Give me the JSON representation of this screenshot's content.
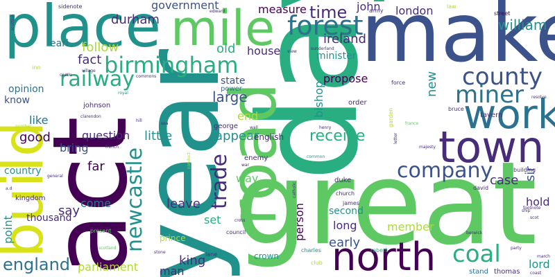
{
  "colors": {
    "background": "#ffffff",
    "palette": [
      "#440154",
      "#472c7a",
      "#3b528b",
      "#2c728e",
      "#21918c",
      "#28ae80",
      "#5ec962",
      "#addc30",
      "#d8e219"
    ]
  },
  "words": [
    {
      "text": "day",
      "color": "#28ae80"
    },
    {
      "text": "year",
      "color": "#21918c"
    },
    {
      "text": "great",
      "color": "#5ec962"
    },
    {
      "text": "make",
      "color": "#3b528b"
    },
    {
      "text": "act",
      "color": "#440154"
    },
    {
      "text": "build",
      "color": "#d8e219"
    },
    {
      "text": "road",
      "color": "#5ec962"
    },
    {
      "text": "place",
      "color": "#21918c"
    },
    {
      "text": "mile",
      "color": "#5ec962"
    },
    {
      "text": "town",
      "color": "#472c7a"
    },
    {
      "text": "north",
      "color": "#440154"
    },
    {
      "text": "work",
      "color": "#2c728e"
    },
    {
      "text": "forest",
      "color": "#2c728e"
    },
    {
      "text": "birmingham",
      "color": "#28ae80"
    },
    {
      "text": "county",
      "color": "#3b528b"
    },
    {
      "text": "miner",
      "color": "#2c728e"
    },
    {
      "text": "company",
      "color": "#3b528b"
    },
    {
      "text": "coal",
      "color": "#28ae80"
    },
    {
      "text": "railway",
      "color": "#28ae80"
    },
    {
      "text": "newcastle",
      "color": "#21918c"
    },
    {
      "text": "trade",
      "color": "#472c7a"
    },
    {
      "text": "england",
      "color": "#2c728e"
    },
    {
      "text": "receive",
      "color": "#28ae80"
    },
    {
      "text": "time",
      "color": "#472c7a"
    },
    {
      "text": "william",
      "color": "#21918c"
    },
    {
      "text": "government",
      "color": "#3b528b"
    },
    {
      "text": "durham",
      "color": "#472c7a"
    },
    {
      "text": "measure",
      "color": "#440154"
    },
    {
      "text": "london",
      "color": "#472c7a"
    },
    {
      "text": "john",
      "color": "#472c7a"
    },
    {
      "text": "ireland",
      "color": "#472c7a"
    },
    {
      "text": "old",
      "color": "#28ae80"
    },
    {
      "text": "house",
      "color": "#472c7a"
    },
    {
      "text": "minister",
      "color": "#21918c"
    },
    {
      "text": "follow",
      "color": "#addc30"
    },
    {
      "text": "fact",
      "color": "#472c7a"
    },
    {
      "text": "earl",
      "color": "#2c728e"
    },
    {
      "text": "bishop",
      "color": "#21918c"
    },
    {
      "text": "propose",
      "color": "#440154"
    },
    {
      "text": "state",
      "color": "#3b528b"
    },
    {
      "text": "large",
      "color": "#3b528b"
    },
    {
      "text": "power",
      "color": "#2c728e"
    },
    {
      "text": "end",
      "color": "#addc30"
    },
    {
      "text": "appear",
      "color": "#21918c"
    },
    {
      "text": "little",
      "color": "#21918c"
    },
    {
      "text": "question",
      "color": "#472c7a"
    },
    {
      "text": "good",
      "color": "#440154"
    },
    {
      "text": "bring",
      "color": "#3b528b"
    },
    {
      "text": "like",
      "color": "#2c728e"
    },
    {
      "text": "far",
      "color": "#440154"
    },
    {
      "text": "know",
      "color": "#3b528b"
    },
    {
      "text": "opinion",
      "color": "#2c728e"
    },
    {
      "text": "country",
      "color": "#21918c"
    },
    {
      "text": "way",
      "color": "#5ec962"
    },
    {
      "text": "case",
      "color": "#472c7a"
    },
    {
      "text": "sir",
      "color": "#3b528b"
    },
    {
      "text": "hold",
      "color": "#472c7a"
    },
    {
      "text": "lord",
      "color": "#21918c"
    },
    {
      "text": "new",
      "color": "#21918c"
    },
    {
      "text": "say",
      "color": "#472c7a"
    },
    {
      "text": "come",
      "color": "#2c728e"
    },
    {
      "text": "leave",
      "color": "#472c7a"
    },
    {
      "text": "set",
      "color": "#28ae80"
    },
    {
      "text": "second",
      "color": "#21918c"
    },
    {
      "text": "long",
      "color": "#472c7a"
    },
    {
      "text": "early",
      "color": "#3b528b"
    },
    {
      "text": "member",
      "color": "#addc30"
    },
    {
      "text": "point",
      "color": "#21918c"
    },
    {
      "text": "thousand",
      "color": "#472c7a"
    },
    {
      "text": "parliament",
      "color": "#addc30"
    },
    {
      "text": "man",
      "color": "#472c7a"
    },
    {
      "text": "king",
      "color": "#472c7a"
    },
    {
      "text": "person",
      "color": "#440154"
    },
    {
      "text": "english",
      "color": "#472c7a"
    },
    {
      "text": "enemy",
      "color": "#472c7a"
    },
    {
      "text": "crown",
      "color": "#21918c"
    },
    {
      "text": "prince",
      "color": "#addc30"
    },
    {
      "text": "kingdom",
      "color": "#472c7a"
    },
    {
      "text": "johnson",
      "color": "#472c7a"
    },
    {
      "text": "george",
      "color": "#472c7a"
    },
    {
      "text": "order",
      "color": "#472c7a"
    },
    {
      "text": "duke",
      "color": "#472c7a"
    },
    {
      "text": "army",
      "color": "#472c7a"
    },
    {
      "text": "street",
      "color": "#440154"
    },
    {
      "text": "tavern",
      "color": "#472c7a"
    },
    {
      "text": "church",
      "color": "#472c7a"
    },
    {
      "text": "stand",
      "color": "#2c728e"
    },
    {
      "text": "thomas",
      "color": "#472c7a"
    },
    {
      "text": "lane",
      "color": "#472c7a"
    },
    {
      "text": "club",
      "color": "#addc30"
    },
    {
      "text": "present",
      "color": "#5ec962"
    },
    {
      "text": "council",
      "color": "#472c7a"
    },
    {
      "text": "robert",
      "color": "#28ae80"
    },
    {
      "text": "charles",
      "color": "#21918c"
    },
    {
      "text": "cross",
      "color": "#472c7a"
    },
    {
      "text": "james",
      "color": "#472c7a"
    },
    {
      "text": "henry",
      "color": "#472c7a"
    },
    {
      "text": "david",
      "color": "#472c7a"
    },
    {
      "text": "building",
      "color": "#472c7a"
    },
    {
      "text": "bruce",
      "color": "#472c7a"
    },
    {
      "text": "force",
      "color": "#472c7a"
    },
    {
      "text": "france",
      "color": "#5ec962"
    },
    {
      "text": "garden",
      "color": "#addc30"
    },
    {
      "text": "letter",
      "color": "#472c7a"
    },
    {
      "text": "majesty",
      "color": "#472c7a"
    },
    {
      "text": "sidenote",
      "color": "#472c7a"
    },
    {
      "text": "scottish",
      "color": "#472c7a"
    },
    {
      "text": "inn",
      "color": "#addc30"
    },
    {
      "text": "castle",
      "color": "#472c7a"
    },
    {
      "text": "village",
      "color": "#472c7a"
    },
    {
      "text": "commons",
      "color": "#472c7a"
    },
    {
      "text": "royal",
      "color": "#21918c"
    },
    {
      "text": "clarendon",
      "color": "#472c7a"
    },
    {
      "text": "number",
      "color": "#addc30"
    },
    {
      "text": "hill",
      "color": "#472c7a"
    },
    {
      "text": "sea",
      "color": "#472c7a"
    },
    {
      "text": "french",
      "color": "#472c7a"
    },
    {
      "text": "general",
      "color": "#472c7a"
    },
    {
      "text": "conduct",
      "color": "#addc30"
    },
    {
      "text": "a.d",
      "color": "#472c7a"
    },
    {
      "text": "wall",
      "color": "#472c7a"
    },
    {
      "text": "war",
      "color": "#472c7a"
    },
    {
      "text": "common",
      "color": "#21918c"
    },
    {
      "text": "catholic",
      "color": "#472c7a"
    },
    {
      "text": "scotland",
      "color": "#5ec962"
    },
    {
      "text": "stone",
      "color": "#472c7a"
    },
    {
      "text": "view",
      "color": "#472c7a"
    },
    {
      "text": "sunderland",
      "color": "#472c7a"
    },
    {
      "text": "edward",
      "color": "#472c7a"
    },
    {
      "text": "law",
      "color": "#addc30"
    },
    {
      "text": "resolve",
      "color": "#472c7a"
    },
    {
      "text": "footnote",
      "color": "#472c7a"
    },
    {
      "text": "ship",
      "color": "#472c7a"
    },
    {
      "text": "scot",
      "color": "#472c7a"
    },
    {
      "text": "berwick",
      "color": "#472c7a"
    },
    {
      "text": "party",
      "color": "#472c7a"
    },
    {
      "text": "march",
      "color": "#472c7a"
    },
    {
      "text": "coast",
      "color": "#472c7a"
    }
  ]
}
